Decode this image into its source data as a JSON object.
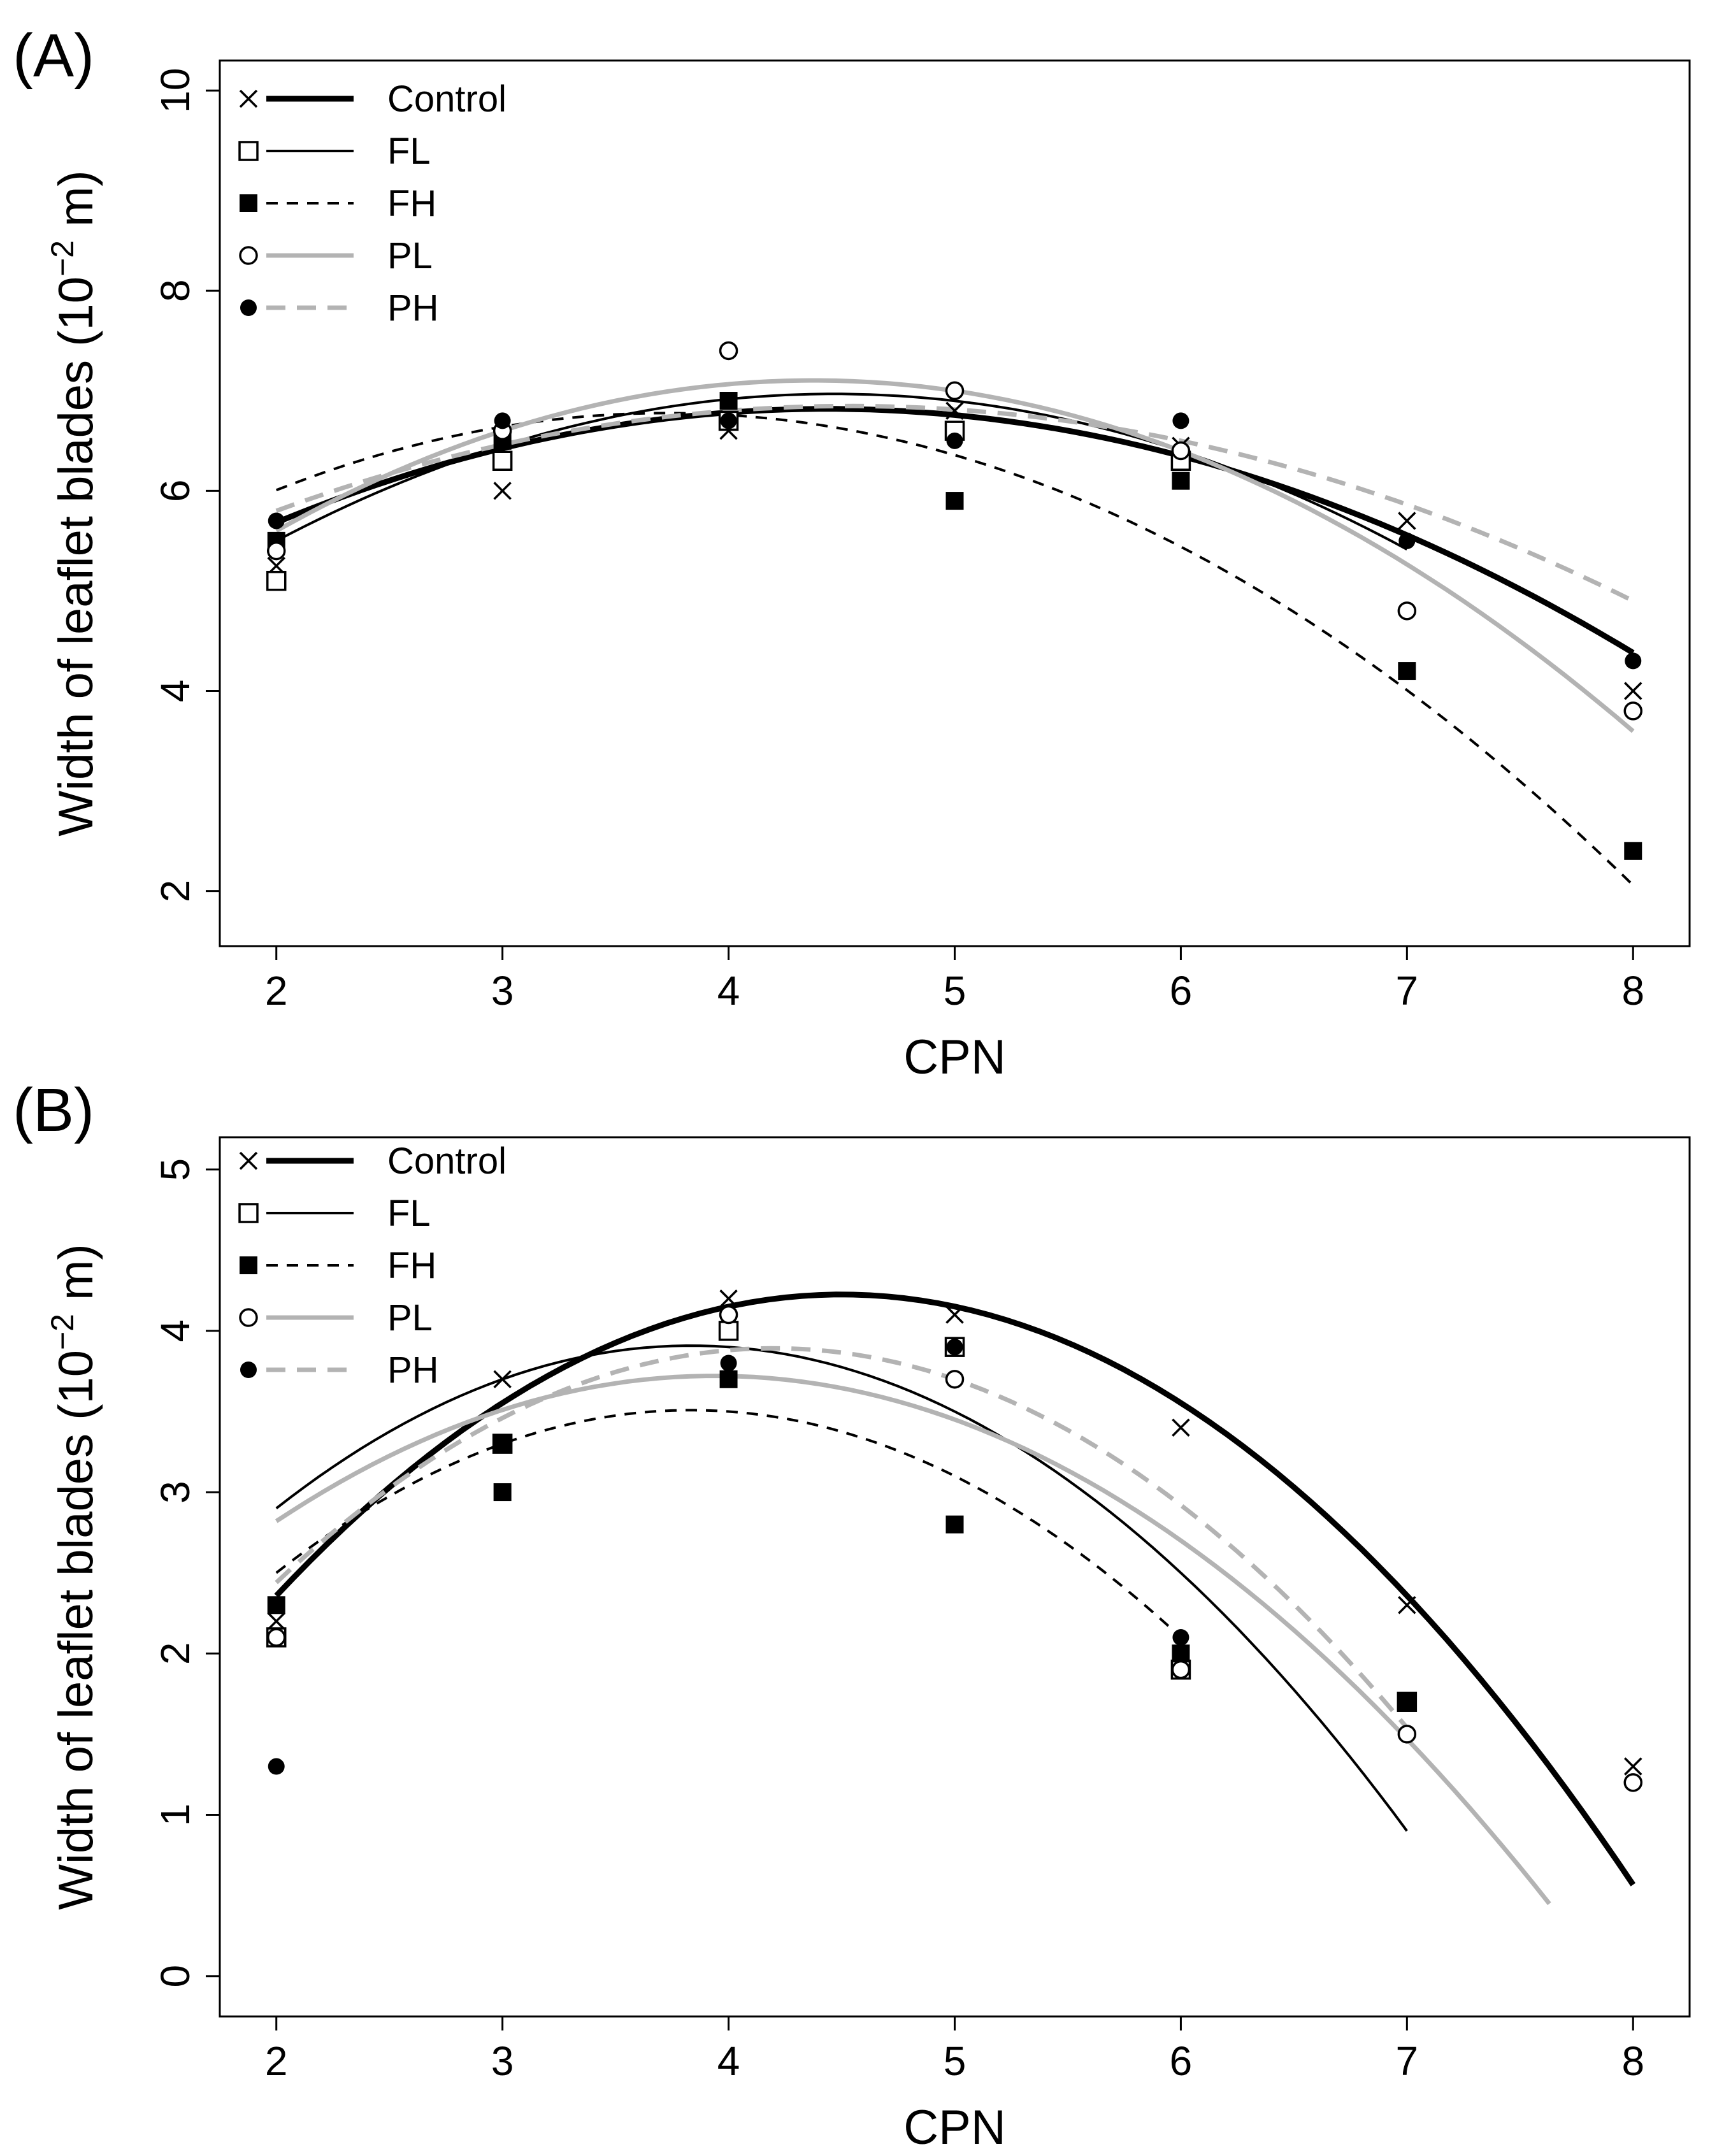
{
  "figure": {
    "panels": [
      "A",
      "B"
    ]
  },
  "chart_data": [
    {
      "panel_label": "(A)",
      "type": "scatter",
      "xlabel": "CPN",
      "ylabel_main": "Width of leaflet blades (10",
      "ylabel_sup": "−2",
      "ylabel_tail": " m)",
      "xlim": [
        1.75,
        8.25
      ],
      "ylim": [
        1.45,
        10.3
      ],
      "xticks": [
        2,
        3,
        4,
        5,
        6,
        7,
        8
      ],
      "yticks": [
        2,
        4,
        6,
        8,
        10
      ],
      "legend_position": "top-left",
      "series": [
        {
          "name": "Control",
          "marker": "x",
          "line": "solid-thick",
          "color": "#000000",
          "x": [
            2,
            3,
            4,
            5,
            6,
            7,
            8
          ],
          "y": [
            5.25,
            6.0,
            6.6,
            6.8,
            6.45,
            5.7,
            4.0
          ],
          "fit": {
            "coef": [
              -0.1917,
              1.7,
              3.05
            ],
            "range": [
              2,
              8
            ]
          }
        },
        {
          "name": "FL",
          "marker": "open-square",
          "line": "solid-thin",
          "color": "#000000",
          "x": [
            2,
            3,
            4,
            5,
            6
          ],
          "y": [
            5.1,
            6.3,
            6.7,
            6.6,
            6.3
          ],
          "fit": {
            "coef": [
              -0.2417,
              2.1583,
              2.15
            ],
            "range": [
              2,
              7
            ]
          }
        },
        {
          "name": "FH",
          "marker": "filled-square",
          "line": "dashed",
          "color": "#000000",
          "x": [
            2,
            3,
            4,
            5,
            6,
            7,
            8
          ],
          "y": [
            5.5,
            6.5,
            6.9,
            5.9,
            6.1,
            4.2,
            2.4
          ],
          "fit": {
            "coef": [
              -0.2583,
              1.925,
              3.19
            ],
            "range": [
              2,
              8
            ]
          }
        },
        {
          "name": "PL",
          "marker": "open-circle",
          "line": "solid-gray",
          "color": "#b3b3b3",
          "x": [
            2,
            3,
            4,
            5,
            6,
            7,
            8
          ],
          "y": [
            5.4,
            6.6,
            7.4,
            7.0,
            6.4,
            4.8,
            3.8
          ],
          "fit": {
            "coef": [
              -0.2667,
              2.3333,
              2.0
            ],
            "range": [
              2,
              8
            ]
          }
        },
        {
          "name": "PH",
          "marker": "filled-circle",
          "line": "dashed-gray",
          "color": "#b3b3b3",
          "x": [
            2,
            3,
            4,
            5,
            6,
            7,
            8
          ],
          "y": [
            5.7,
            6.7,
            6.7,
            6.5,
            6.7,
            5.5,
            4.3
          ],
          "fit": {
            "coef": [
              -0.1625,
              1.475,
              3.5
            ],
            "range": [
              2,
              8
            ]
          }
        }
      ]
    },
    {
      "panel_label": "(B)",
      "type": "scatter",
      "xlabel": "CPN",
      "ylabel_main": "Width of leaflet blades (10",
      "ylabel_sup": "−2",
      "ylabel_tail": " m)",
      "xlim": [
        1.75,
        8.25
      ],
      "ylim": [
        -0.25,
        5.2
      ],
      "xticks": [
        2,
        3,
        4,
        5,
        6,
        7,
        8
      ],
      "yticks": [
        0,
        1,
        2,
        3,
        4,
        5
      ],
      "legend_position": "top-left",
      "series": [
        {
          "name": "Control",
          "marker": "x",
          "line": "solid-thick",
          "color": "#000000",
          "x": [
            2,
            3,
            4,
            5,
            6,
            7,
            8
          ],
          "y": [
            2.2,
            3.7,
            4.2,
            4.1,
            3.4,
            2.3,
            1.3
          ],
          "fit": {
            "coef": [
              -0.2987,
              2.6884,
              -1.8238
            ],
            "range": [
              2,
              8
            ]
          }
        },
        {
          "name": "FL",
          "marker": "open-square",
          "line": "solid-thin",
          "color": "#000000",
          "x": [
            2,
            3,
            4,
            5,
            6,
            7
          ],
          "y": [
            2.1,
            3.3,
            4.0,
            3.9,
            1.9,
            1.7
          ],
          "fit": {
            "coef": [
              -0.3,
              2.3,
              -0.5
            ],
            "range": [
              2,
              7
            ]
          }
        },
        {
          "name": "FH",
          "marker": "filled-square",
          "line": "dashed",
          "color": "#000000",
          "x": [
            2,
            3,
            3,
            4,
            5,
            6,
            7
          ],
          "y": [
            2.3,
            3.3,
            3.0,
            3.7,
            2.8,
            2.0,
            1.7
          ],
          "fit": {
            "coef": [
              -0.3,
              2.3,
              -0.9
            ],
            "range": [
              2,
              6
            ]
          }
        },
        {
          "name": "PL",
          "marker": "open-circle",
          "line": "solid-gray",
          "color": "#b3b3b3",
          "x": [
            2,
            3,
            4,
            5,
            6,
            7,
            8
          ],
          "y": [
            2.1,
            3.3,
            4.1,
            3.7,
            1.9,
            1.5,
            1.2
          ],
          "fit": {
            "coef": [
              -0.24,
              1.89,
              0.0
            ],
            "range": [
              2,
              7.63
            ]
          }
        },
        {
          "name": "PH",
          "marker": "filled-circle",
          "line": "dashed-gray",
          "color": "#b3b3b3",
          "x": [
            2,
            3,
            4,
            5,
            6,
            7
          ],
          "y": [
            1.3,
            3.3,
            3.8,
            3.9,
            2.1,
            1.7
          ],
          "fit": {
            "coef": [
              -0.3,
              2.52,
              -1.4
            ],
            "range": [
              2,
              7
            ]
          }
        }
      ]
    }
  ]
}
